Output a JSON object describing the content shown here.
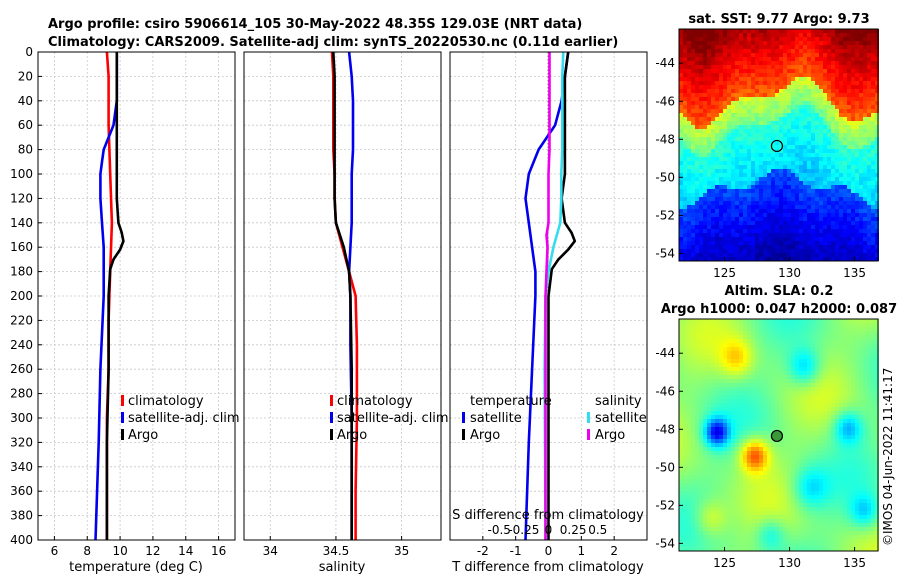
{
  "header": {
    "title_line1": "Argo profile: csiro 5906614_105 30-May-2022 48.35S 129.03E (NRT data)",
    "title_line2": "Climatology: CARS2009. Satellite-adj clim: synTS_20220530.nc (0.11d earlier)"
  },
  "watermark": "©IMOS 04-Jun-2022 11:41:17",
  "colors": {
    "climatology": "#ff0000",
    "satellite": "#0000ee",
    "argo": "#000000",
    "sal_satellite": "#33ddee",
    "sal_argo": "#ee00ee"
  },
  "chart_data": [
    {
      "type": "line",
      "id": "temperature",
      "xlabel": "temperature (deg C)",
      "xlim": [
        5,
        17
      ],
      "xticks": [
        "6",
        "8",
        "10",
        "12",
        "14",
        "16"
      ],
      "xtick_values": [
        6,
        8,
        10,
        12,
        14,
        16
      ],
      "ylim": [
        400,
        0
      ],
      "yticks": [
        "0",
        "20",
        "40",
        "60",
        "80",
        "100",
        "120",
        "140",
        "160",
        "180",
        "200",
        "220",
        "240",
        "260",
        "280",
        "300",
        "320",
        "340",
        "360",
        "380",
        "400"
      ],
      "ytick_values": [
        0,
        20,
        40,
        60,
        80,
        100,
        120,
        140,
        160,
        180,
        200,
        220,
        240,
        260,
        280,
        300,
        320,
        340,
        360,
        380,
        400
      ],
      "legend": [
        "climatology",
        "satellite-adj. clim",
        "Argo"
      ],
      "series": [
        {
          "name": "climatology",
          "color": "#ff0000",
          "y": [
            0,
            20,
            60,
            100,
            140,
            180,
            220,
            260,
            300,
            340,
            400
          ],
          "x": [
            9.2,
            9.3,
            9.3,
            9.4,
            9.5,
            9.4,
            9.3,
            9.3,
            9.2,
            9.2,
            9.2
          ]
        },
        {
          "name": "satellite-adj. clim",
          "color": "#0000ee",
          "y": [
            0,
            20,
            40,
            60,
            70,
            80,
            90,
            100,
            120,
            140,
            160,
            200,
            260,
            320,
            400
          ],
          "x": [
            9.8,
            9.8,
            9.8,
            9.6,
            9.3,
            9.0,
            8.9,
            8.8,
            8.8,
            8.9,
            9.0,
            9.0,
            8.8,
            8.7,
            8.5
          ]
        },
        {
          "name": "Argo",
          "color": "#000000",
          "y": [
            0,
            20,
            40,
            60,
            80,
            100,
            120,
            140,
            148,
            155,
            162,
            170,
            178,
            200,
            260,
            320,
            400
          ],
          "x": [
            9.8,
            9.8,
            9.8,
            9.8,
            9.8,
            9.8,
            9.8,
            9.9,
            10.1,
            10.2,
            10.0,
            9.6,
            9.4,
            9.3,
            9.3,
            9.2,
            9.2
          ]
        }
      ]
    },
    {
      "type": "line",
      "id": "salinity",
      "xlabel": "salinity",
      "xlim": [
        33.8,
        35.3
      ],
      "xticks": [
        "34",
        "34.5",
        "35"
      ],
      "xtick_values": [
        34,
        34.5,
        35
      ],
      "ylim": [
        400,
        0
      ],
      "legend": [
        "climatology",
        "satellite-adj. clim",
        "Argo"
      ],
      "series": [
        {
          "name": "climatology",
          "color": "#ff0000",
          "y": [
            0,
            20,
            40,
            60,
            80,
            100,
            120,
            140,
            160,
            180,
            200,
            240,
            300,
            360,
            400
          ],
          "x": [
            34.47,
            34.48,
            34.48,
            34.48,
            34.48,
            34.49,
            34.49,
            34.5,
            34.55,
            34.6,
            34.65,
            34.66,
            34.66,
            34.65,
            34.65
          ],
          "note": ""
        },
        {
          "name": "satellite-adj. clim",
          "color": "#0000ee",
          "y": [
            0,
            20,
            40,
            60,
            80,
            100,
            120,
            140,
            160,
            180,
            200,
            240,
            300,
            360,
            400
          ],
          "x": [
            34.6,
            34.62,
            34.63,
            34.63,
            34.63,
            34.62,
            34.62,
            34.62,
            34.61,
            34.6,
            34.61,
            34.61,
            34.62,
            34.62,
            34.62
          ]
        },
        {
          "name": "Argo",
          "color": "#000000",
          "y": [
            0,
            20,
            40,
            60,
            80,
            100,
            120,
            140,
            150,
            160,
            180,
            200,
            260,
            320,
            400
          ],
          "x": [
            34.48,
            34.49,
            34.49,
            34.49,
            34.49,
            34.49,
            34.49,
            34.5,
            34.53,
            34.56,
            34.6,
            34.61,
            34.62,
            34.62,
            34.62
          ]
        }
      ]
    },
    {
      "type": "line",
      "id": "difference",
      "xlabel": "T difference from climatology",
      "xlim": [
        -3,
        3
      ],
      "xticks": [
        "-2",
        "-1",
        "0",
        "1",
        "2"
      ],
      "xtick_values": [
        -2,
        -1,
        0,
        1,
        2
      ],
      "top_axis_label": "S difference from climatology",
      "top_ticks": [
        "-0.5",
        "-0.25",
        "0",
        "0.25",
        "0.5"
      ],
      "top_tick_values": [
        -0.5,
        -0.25,
        0,
        0.25,
        0.5
      ],
      "ylim": [
        400,
        0
      ],
      "legend_temperature_title": "temperature",
      "legend_salinity_title": "salinity",
      "legend": [
        "satellite",
        "Argo",
        "satellite",
        "Argo"
      ],
      "series": [
        {
          "name": "T satellite",
          "color": "#0000ee",
          "y": [
            0,
            20,
            40,
            60,
            80,
            100,
            120,
            140,
            160,
            180,
            200,
            260,
            320,
            400
          ],
          "x": [
            0.6,
            0.5,
            0.4,
            0.2,
            -0.3,
            -0.6,
            -0.7,
            -0.6,
            -0.5,
            -0.4,
            -0.4,
            -0.5,
            -0.6,
            -0.7
          ]
        },
        {
          "name": "T Argo",
          "color": "#000000",
          "y": [
            0,
            20,
            40,
            60,
            80,
            100,
            120,
            140,
            148,
            155,
            162,
            170,
            178,
            200,
            260,
            320,
            400
          ],
          "x": [
            0.6,
            0.5,
            0.5,
            0.5,
            0.5,
            0.5,
            0.4,
            0.5,
            0.7,
            0.8,
            0.6,
            0.3,
            0.1,
            0.0,
            0.0,
            0.0,
            0.0
          ]
        },
        {
          "name": "S satellite",
          "color": "#33ddee",
          "y": [
            0,
            20,
            40,
            60,
            80,
            100,
            120,
            140,
            160,
            180,
            200,
            260,
            400
          ],
          "x": [
            0.15,
            0.14,
            0.14,
            0.14,
            0.14,
            0.13,
            0.13,
            0.12,
            0.05,
            0.0,
            -0.03,
            -0.04,
            -0.03
          ]
        },
        {
          "name": "S Argo",
          "color": "#ee00ee",
          "y": [
            0,
            20,
            40,
            60,
            80,
            100,
            120,
            140,
            150,
            160,
            180,
            200,
            260,
            400
          ],
          "x": [
            0.01,
            0.01,
            0.01,
            0.01,
            0.01,
            0.0,
            0.0,
            0.0,
            -0.02,
            -0.01,
            -0.02,
            -0.03,
            -0.03,
            -0.03
          ]
        }
      ]
    },
    {
      "type": "heatmap",
      "id": "sst_map",
      "title": "sat. SST: 9.77 Argo: 9.73",
      "xticks": [
        "125",
        "130",
        "135"
      ],
      "xtick_values": [
        125,
        130,
        135
      ],
      "xlim": [
        121.5,
        136.8
      ],
      "yticks": [
        "-44",
        "-46",
        "-48",
        "-50",
        "-52",
        "-54"
      ],
      "ytick_values": [
        -44,
        -46,
        -48,
        -50,
        -52,
        -54
      ],
      "ylim": [
        -54.4,
        -42.2
      ],
      "marker": {
        "lon": 129.03,
        "lat": -48.35
      }
    },
    {
      "type": "heatmap",
      "id": "sla_map",
      "title_line1": "Altim. SLA: 0.2",
      "title_line2": "Argo h1000: 0.047 h2000: 0.087",
      "xticks": [
        "125",
        "130",
        "135"
      ],
      "xtick_values": [
        125,
        130,
        135
      ],
      "xlim": [
        121.5,
        136.8
      ],
      "yticks": [
        "-44",
        "-46",
        "-48",
        "-50",
        "-52",
        "-54"
      ],
      "ytick_values": [
        -44,
        -46,
        -48,
        -50,
        -52,
        -54
      ],
      "ylim": [
        -54.4,
        -42.2
      ],
      "marker": {
        "lon": 129.03,
        "lat": -48.35
      }
    }
  ]
}
